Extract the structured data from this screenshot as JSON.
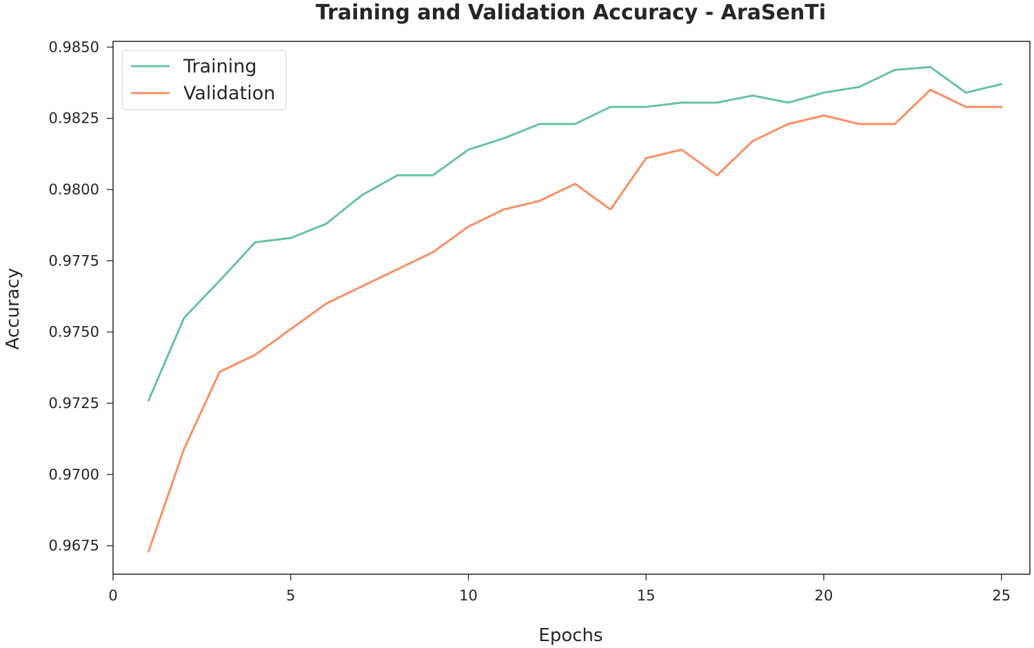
{
  "chart_data": {
    "type": "line",
    "title": "Training and Validation Accuracy - AraSenTi",
    "xlabel": "Epochs",
    "ylabel": "Accuracy",
    "xlim": [
      0,
      25.8
    ],
    "ylim": [
      0.9665,
      0.9852
    ],
    "x_ticks": [
      0,
      5,
      10,
      15,
      20,
      25
    ],
    "x_tick_labels": [
      "0",
      "5",
      "10",
      "15",
      "20",
      "25"
    ],
    "y_ticks": [
      0.9675,
      0.97,
      0.9725,
      0.975,
      0.9775,
      0.98,
      0.9825,
      0.985
    ],
    "y_tick_labels": [
      "0.9675",
      "0.9700",
      "0.9725",
      "0.9750",
      "0.9775",
      "0.9800",
      "0.9825",
      "0.9850"
    ],
    "grid": false,
    "legend_position": "top-left",
    "x": [
      1,
      2,
      3,
      4,
      5,
      6,
      7,
      8,
      9,
      10,
      11,
      12,
      13,
      14,
      15,
      16,
      17,
      18,
      19,
      20,
      21,
      22,
      23,
      24,
      25
    ],
    "series": [
      {
        "name": "Training",
        "color": "#66c2a5",
        "values": [
          0.9726,
          0.9755,
          0.9768,
          0.97815,
          0.9783,
          0.9788,
          0.9798,
          0.9805,
          0.9805,
          0.9814,
          0.9818,
          0.9823,
          0.9823,
          0.9829,
          0.9829,
          0.98305,
          0.98305,
          0.9833,
          0.98305,
          0.9834,
          0.9836,
          0.9842,
          0.9843,
          0.9834,
          0.9837
        ]
      },
      {
        "name": "Validation",
        "color": "#fc8d62",
        "values": [
          0.9673,
          0.9709,
          0.9736,
          0.9742,
          0.9751,
          0.976,
          0.9766,
          0.9772,
          0.9778,
          0.9787,
          0.9793,
          0.9796,
          0.9802,
          0.9793,
          0.9811,
          0.9814,
          0.9805,
          0.9817,
          0.9823,
          0.9826,
          0.9823,
          0.9823,
          0.9835,
          0.9829,
          0.9829
        ]
      }
    ]
  }
}
